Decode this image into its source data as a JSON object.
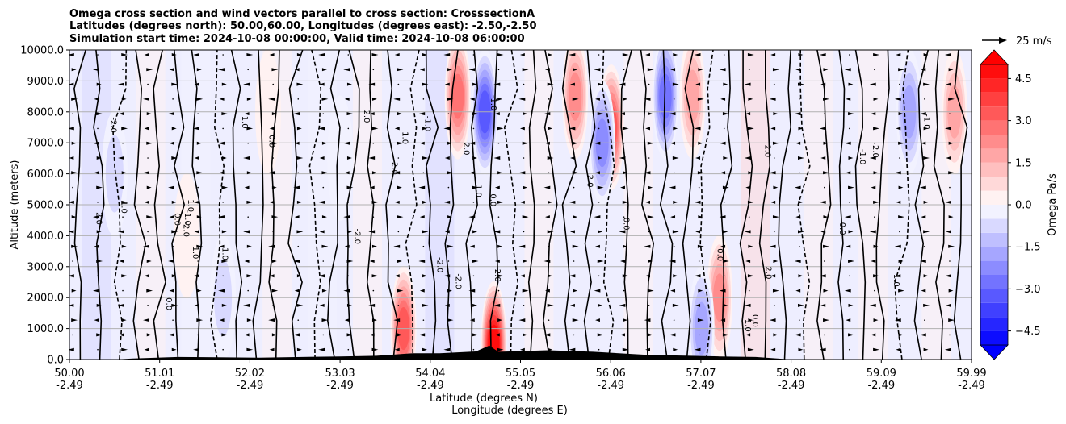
{
  "chart_data": {
    "type": "heatmap",
    "title": {
      "line1": "Omega cross section and wind vectors parallel to cross section: CrosssectionA",
      "line2": "Latitudes (degrees north): 50.00,60.00, Longitudes (degrees east): -2.50,-2.50",
      "line3": "Simulation start time: 2024-10-08 00:00:00, Valid time: 2024-10-08 06:00:00"
    },
    "ylabel": "Altitude (meters)",
    "xlabel_lat": "Latitude (degrees N)",
    "xlabel_lon": "Longitude (degrees E)",
    "ylim": [
      0,
      10000
    ],
    "xlim": [
      50.0,
      59.99
    ],
    "y_ticks": [
      "0.0",
      "1000.0",
      "2000.0",
      "3000.0",
      "4000.0",
      "5000.0",
      "6000.0",
      "7000.0",
      "8000.0",
      "9000.0",
      "10000.0"
    ],
    "x_ticks_lat": [
      "50.00",
      "51.01",
      "52.02",
      "53.03",
      "54.04",
      "55.05",
      "56.06",
      "57.07",
      "58.08",
      "59.09",
      "59.99"
    ],
    "x_ticks_lon": [
      "-2.49",
      "-2.49",
      "-2.49",
      "-2.49",
      "-2.49",
      "-2.49",
      "-2.49",
      "-2.49",
      "-2.49",
      "-2.49",
      "-2.49"
    ],
    "colorbar": {
      "label": "Omega Pa/s",
      "range": [
        -5.0,
        5.0
      ],
      "levels": [
        -5.0,
        -4.5,
        -4.0,
        -3.5,
        -3.0,
        -2.5,
        -2.0,
        -1.5,
        -1.0,
        -0.5,
        0.0,
        0.5,
        1.0,
        1.5,
        2.0,
        2.5,
        3.0,
        3.5,
        4.0,
        4.5,
        5.0
      ],
      "ticks": [
        "4.5",
        "3.0",
        "1.5",
        "0.0",
        "−1.5",
        "−3.0",
        "−4.5"
      ],
      "extend": "both"
    },
    "quiver_key": "25 m/s",
    "contour_levels": [
      -2.0,
      -1.0,
      0.0,
      1.0,
      2.0
    ],
    "contour_label_samples": [
      "0.0",
      "-1.0",
      "1.0",
      "-2.0",
      "2.0"
    ],
    "omega_features": [
      {
        "lat": 50.5,
        "alt": 6000,
        "value": -0.8
      },
      {
        "lat": 51.3,
        "alt": 4000,
        "value": 0.6
      },
      {
        "lat": 51.7,
        "alt": 2000,
        "value": -1.2
      },
      {
        "lat": 52.2,
        "alt": 8000,
        "value": 0.5
      },
      {
        "lat": 53.0,
        "alt": 6500,
        "value": -0.7
      },
      {
        "lat": 53.7,
        "alt": 1000,
        "value": 3.5
      },
      {
        "lat": 54.3,
        "alt": 8500,
        "value": 3.0
      },
      {
        "lat": 54.6,
        "alt": 8000,
        "value": -3.5
      },
      {
        "lat": 54.7,
        "alt": 500,
        "value": 5.0
      },
      {
        "lat": 55.6,
        "alt": 8500,
        "value": 2.5
      },
      {
        "lat": 56.0,
        "alt": 7500,
        "value": 3.5
      },
      {
        "lat": 55.9,
        "alt": 7000,
        "value": -2.5
      },
      {
        "lat": 56.6,
        "alt": 8500,
        "value": -3.0
      },
      {
        "lat": 56.9,
        "alt": 8500,
        "value": 2.0
      },
      {
        "lat": 57.2,
        "alt": 2000,
        "value": 2.5
      },
      {
        "lat": 57.0,
        "alt": 1000,
        "value": -2.0
      },
      {
        "lat": 59.3,
        "alt": 8000,
        "value": -2.0
      },
      {
        "lat": 59.8,
        "alt": 8000,
        "value": 2.0
      }
    ],
    "terrain": [
      {
        "lat": 50.0,
        "alt": 0
      },
      {
        "lat": 50.5,
        "alt": 0
      },
      {
        "lat": 50.7,
        "alt": 30
      },
      {
        "lat": 51.2,
        "alt": 80
      },
      {
        "lat": 52.1,
        "alt": 60
      },
      {
        "lat": 53.0,
        "alt": 100
      },
      {
        "lat": 53.4,
        "alt": 120
      },
      {
        "lat": 53.8,
        "alt": 200
      },
      {
        "lat": 54.1,
        "alt": 200
      },
      {
        "lat": 54.5,
        "alt": 260
      },
      {
        "lat": 54.65,
        "alt": 450
      },
      {
        "lat": 54.75,
        "alt": 250
      },
      {
        "lat": 55.3,
        "alt": 300
      },
      {
        "lat": 55.8,
        "alt": 250
      },
      {
        "lat": 56.4,
        "alt": 150
      },
      {
        "lat": 57.2,
        "alt": 100
      },
      {
        "lat": 57.6,
        "alt": 80
      },
      {
        "lat": 58.0,
        "alt": 0
      },
      {
        "lat": 59.99,
        "alt": 0
      }
    ]
  }
}
